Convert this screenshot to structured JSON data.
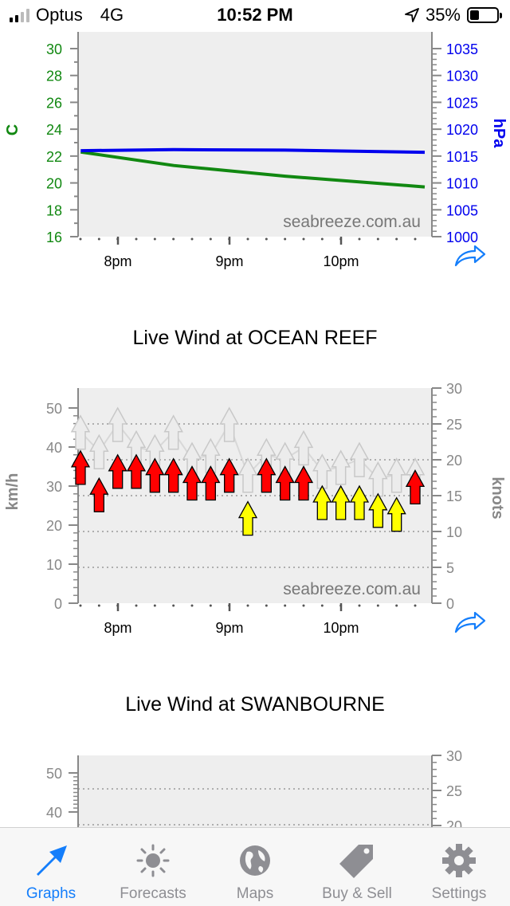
{
  "status_bar": {
    "carrier": "Optus",
    "network": "4G",
    "time": "10:52 PM",
    "battery": "35%",
    "battery_level": 0.35
  },
  "temp_pressure_chart": {
    "watermark": "seabreeze.com.au",
    "left_unit": "C",
    "right_unit": "hPa",
    "left_ticks": [
      "30",
      "28",
      "26",
      "24",
      "22",
      "20",
      "18",
      "16"
    ],
    "right_ticks": [
      "1035",
      "1030",
      "1025",
      "1020",
      "1015",
      "1010",
      "1005",
      "1000"
    ],
    "x_labels": [
      "8pm",
      "9pm",
      "10pm"
    ]
  },
  "ocean_reef": {
    "title": "Live Wind at OCEAN REEF",
    "watermark": "seabreeze.com.au",
    "left_unit": "km/h",
    "right_unit": "knots",
    "left_ticks": [
      "50",
      "40",
      "30",
      "20",
      "10",
      "0"
    ],
    "right_ticks": [
      "30",
      "25",
      "20",
      "15",
      "10",
      "5",
      "0"
    ],
    "x_labels": [
      "8pm",
      "9pm",
      "10pm"
    ]
  },
  "swanbourne": {
    "title": "Live Wind at SWANBOURNE",
    "left_ticks": [
      "50",
      "40"
    ],
    "right_ticks": [
      "30",
      "25",
      "20"
    ]
  },
  "tabs": [
    {
      "label": "Graphs",
      "icon": "arrow-icon",
      "active": true
    },
    {
      "label": "Forecasts",
      "icon": "sun-icon",
      "active": false
    },
    {
      "label": "Maps",
      "icon": "globe-icon",
      "active": false
    },
    {
      "label": "Buy & Sell",
      "icon": "tag-icon",
      "active": false
    },
    {
      "label": "Settings",
      "icon": "gear-icon",
      "active": false
    }
  ],
  "chart_data": [
    {
      "type": "line",
      "title": "",
      "x_range": [
        "19:40",
        "22:45"
      ],
      "x": [
        "19:40",
        "20:30",
        "21:30",
        "22:45"
      ],
      "series": [
        {
          "name": "",
          "axis": "left",
          "unit": "C",
          "color": "#118811",
          "values": [
            22.3,
            21.3,
            20.5,
            19.7
          ]
        },
        {
          "name": "",
          "axis": "right",
          "unit": "hPa",
          "color": "#0000ee",
          "values": [
            1016.0,
            1016.2,
            1016.1,
            1015.7
          ]
        }
      ],
      "ylim_left": [
        16,
        30
      ],
      "ylim_right": [
        1000,
        1035
      ]
    },
    {
      "type": "scatter",
      "title": "Live Wind at OCEAN REEF",
      "x_start_minutes": 0,
      "x_step_minutes": 10,
      "ylabel": "km/h",
      "ylabel_right": "knots",
      "ylim": [
        0,
        55
      ],
      "ylim_right": [
        0,
        30
      ],
      "gridlines_knots": [
        5,
        10,
        15,
        20,
        25
      ],
      "series": [
        {
          "name": "",
          "color": "#ff0000",
          "values": [
            39,
            32,
            38,
            38,
            37,
            37,
            35,
            35,
            37,
            26,
            37,
            35,
            35,
            30,
            30,
            30,
            28,
            27,
            34
          ]
        },
        {
          "name": "",
          "color": "#ffff00",
          "flags": [
            0,
            0,
            0,
            0,
            0,
            0,
            0,
            0,
            0,
            1,
            0,
            0,
            0,
            1,
            1,
            1,
            1,
            1,
            0
          ]
        },
        {
          "name": "",
          "color": "#e8e8e8",
          "values": [
            48,
            43,
            50,
            44,
            43,
            48,
            41,
            42,
            50,
            37,
            42,
            41,
            44,
            38,
            39,
            41,
            36,
            37,
            37
          ]
        }
      ]
    }
  ]
}
